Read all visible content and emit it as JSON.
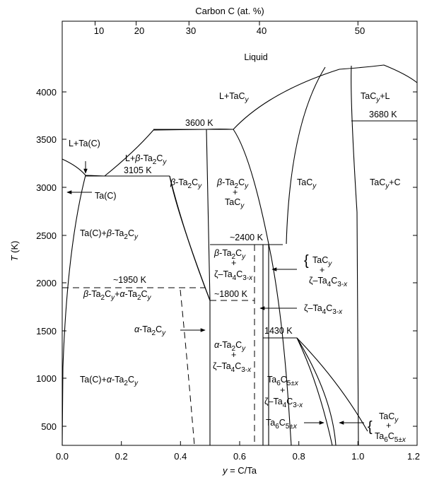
{
  "top_axis": {
    "title": "Carbon C (at. %)",
    "ticks": [
      {
        "label": "10",
        "y": 0.1111
      },
      {
        "label": "20",
        "y": 0.25
      },
      {
        "label": "30",
        "y": 0.4286
      },
      {
        "label": "40",
        "y": 0.6667
      },
      {
        "label": "50",
        "y": 1.0
      }
    ]
  },
  "bottom_axis": {
    "title": "y = C/Ta",
    "ticks": [
      "0.0",
      "0.2",
      "0.4",
      "0.6",
      "0.8",
      "1.0",
      "1.2"
    ]
  },
  "left_axis": {
    "title": "T (K)",
    "ticks": [
      "500",
      "1000",
      "1500",
      "2000",
      "2500",
      "3000",
      "3500",
      "4000"
    ]
  },
  "labels": {
    "liquid": "Liquid",
    "l_tacy": "L+TaC",
    "tacy_l": "TaC",
    "l_tac": "L+Ta(C)",
    "l_beta": "L+",
    "beta_ta2cy_a": "Ta",
    "t3105": "3105 K",
    "t3600": "3600 K",
    "t3680": "3680 K",
    "beta_region": "-Ta",
    "beta_plus_tacy": "-Ta",
    "tacy_region": "TaC",
    "tacy_c": "TaC",
    "tac": "Ta(C)",
    "tac_beta": "Ta(C)+",
    "t2400": "~2400 K",
    "t1950": "~1950 K",
    "t1800": "~1800 K",
    "t1430": "1430 K",
    "alpha_region": "-Ta",
    "tac_alpha": "Ta(C)+",
    "zeta_region": "ζ–Ta",
    "ta6c5": "Ta",
    "plus": "+"
  }
}
